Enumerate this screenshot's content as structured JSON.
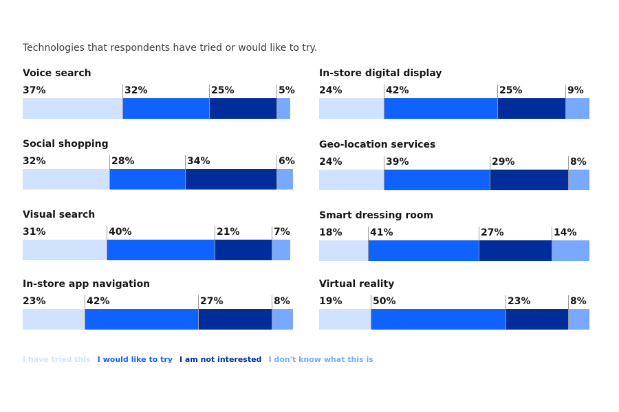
{
  "subtitle": "Technologies that respondents have tried or would like to try.",
  "legend": [
    {
      "label": "I have tried this",
      "color": "#d0e2ff"
    },
    {
      "label": "I would like to try",
      "color": "#0f62fe"
    },
    {
      "label": "I am not interested",
      "color": "#002d9c"
    },
    {
      "label": "I don't know what this is",
      "color": "#78a9ff"
    }
  ],
  "chart_data": {
    "type": "bar",
    "stacked": true,
    "orientation": "horizontal",
    "series": [
      {
        "name": "I have tried this",
        "values": [
          37,
          32,
          31,
          23,
          24,
          24,
          18,
          19
        ]
      },
      {
        "name": "I would like to try",
        "values": [
          32,
          28,
          40,
          42,
          42,
          39,
          41,
          50
        ]
      },
      {
        "name": "I am not interested",
        "values": [
          25,
          34,
          21,
          27,
          25,
          29,
          27,
          23
        ]
      },
      {
        "name": "I don't know what this is",
        "values": [
          5,
          6,
          7,
          8,
          9,
          8,
          14,
          8
        ]
      }
    ],
    "categories": [
      "Voice search",
      "Social shopping",
      "Visual search",
      "In-store app navigation",
      "In-store digital display",
      "Geo-location services",
      "Smart dressing room",
      "Virtual reality"
    ],
    "value_suffix": "%",
    "xlim": [
      0,
      100
    ]
  }
}
